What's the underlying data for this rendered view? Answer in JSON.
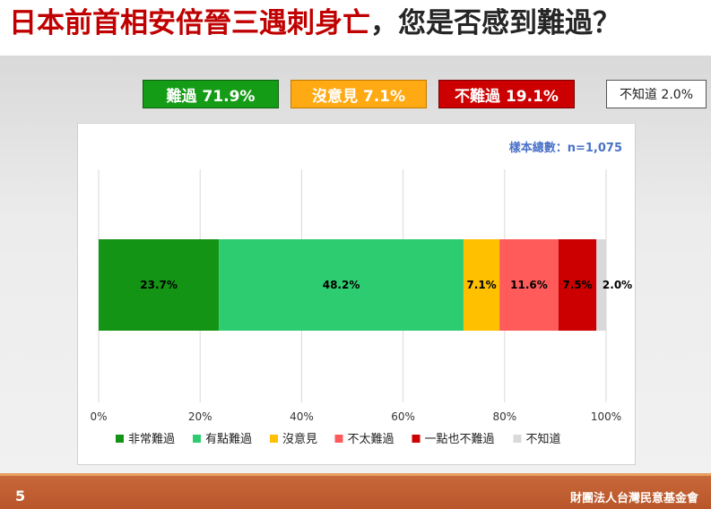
{
  "title": {
    "main": "日本前首相安倍晉三遇刺身亡",
    "question": "，您是否感到難過？"
  },
  "summary": {
    "sad": "難過 71.9%",
    "neutral": "沒意見 7.1%",
    "not_sad": "不難過 19.1%",
    "unknown": "不知道 2.0%"
  },
  "colors": {
    "title_red": "#c00000",
    "summary_green": "#159c17",
    "summary_orange": "#ffa913",
    "summary_red": "#cc0000",
    "footer": "#bd5b2e"
  },
  "footer": {
    "page_number": "5",
    "organization": "財團法人台灣民意基金會"
  },
  "chart_data": {
    "type": "bar",
    "orientation": "horizontal",
    "stacked": true,
    "sample_note": "樣本總數：n=1,075",
    "xlim": [
      0,
      100
    ],
    "x_ticks": [
      "0%",
      "20%",
      "40%",
      "60%",
      "80%",
      "100%"
    ],
    "grid": true,
    "legend_position": "bottom",
    "series": [
      {
        "name": "非常難過",
        "value": 23.7,
        "label": "23.7%",
        "color": "#149414"
      },
      {
        "name": "有點難過",
        "value": 48.2,
        "label": "48.2%",
        "color": "#2ecc71"
      },
      {
        "name": "沒意見",
        "value": 7.1,
        "label": "7.1%",
        "color": "#ffc000"
      },
      {
        "name": "不太難過",
        "value": 11.6,
        "label": "11.6%",
        "color": "#ff5b5b"
      },
      {
        "name": "一點也不難過",
        "value": 7.5,
        "label": "7.5%",
        "color": "#cc0000"
      },
      {
        "name": "不知道",
        "value": 2.0,
        "label": "2.0%",
        "color": "#d9d9d9"
      }
    ]
  }
}
